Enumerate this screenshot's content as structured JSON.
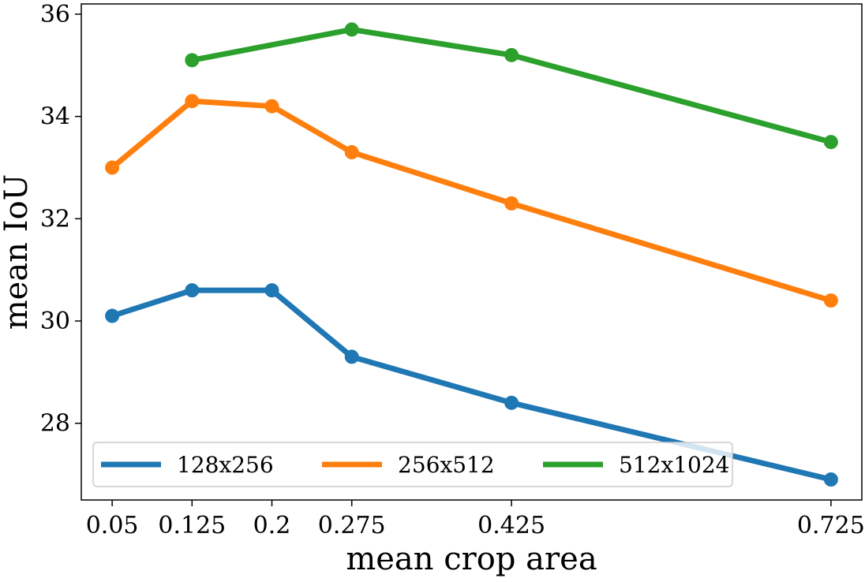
{
  "chart_data": {
    "type": "line",
    "title": "",
    "xlabel": "mean crop area",
    "ylabel": "mean IoU",
    "x_ticks": [
      "0.05",
      "0.125",
      "0.2",
      "0.275",
      "0.425",
      "0.725"
    ],
    "y_ticks": [
      "28",
      "30",
      "32",
      "34",
      "36"
    ],
    "xlim": [
      0.021,
      0.754
    ],
    "ylim": [
      26.5,
      36.2
    ],
    "grid": false,
    "legend": "lower center",
    "series": [
      {
        "name": "128x256",
        "color": "#1f77b4",
        "x": [
          0.05,
          0.125,
          0.2,
          0.275,
          0.425,
          0.725
        ],
        "y": [
          30.1,
          30.6,
          30.6,
          29.3,
          28.4,
          26.9
        ]
      },
      {
        "name": "256x512",
        "color": "#ff7f0e",
        "x": [
          0.05,
          0.125,
          0.2,
          0.275,
          0.425,
          0.725
        ],
        "y": [
          33.0,
          34.3,
          34.2,
          33.3,
          32.3,
          30.4
        ]
      },
      {
        "name": "512x1024",
        "color": "#2ca02c",
        "x": [
          0.125,
          0.275,
          0.425,
          0.725
        ],
        "y": [
          35.1,
          35.7,
          35.2,
          33.5
        ]
      }
    ]
  }
}
